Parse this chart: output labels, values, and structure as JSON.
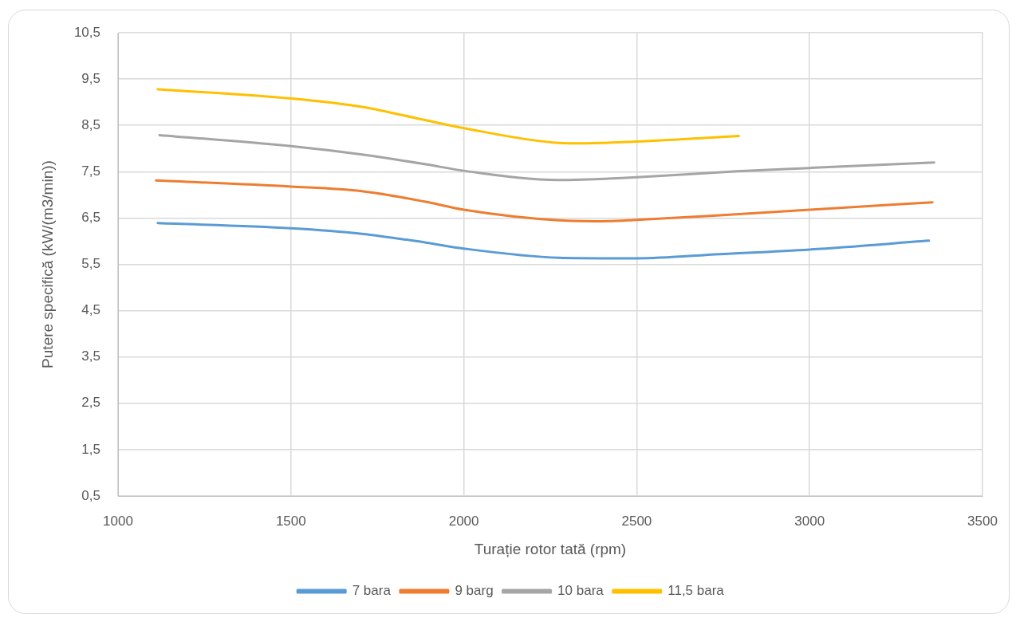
{
  "chart_data": {
    "type": "line",
    "xlabel": "Turație rotor tată (rpm)",
    "ylabel": "Putere specifică (kW/(m3/min))",
    "xlim": [
      1000,
      3500
    ],
    "xticks": [
      1000,
      1500,
      2000,
      2500,
      3000,
      3500
    ],
    "ylim": [
      0.5,
      10.5
    ],
    "yticks": [
      {
        "value": 0.5,
        "label": "0,5"
      },
      {
        "value": 1.5,
        "label": "1,5"
      },
      {
        "value": 2.5,
        "label": "2,5"
      },
      {
        "value": 3.5,
        "label": "3,5"
      },
      {
        "value": 4.5,
        "label": "4,5"
      },
      {
        "value": 5.5,
        "label": "5,5"
      },
      {
        "value": 6.5,
        "label": "6,5"
      },
      {
        "value": 7.5,
        "label": "7,5"
      },
      {
        "value": 8.5,
        "label": "8,5"
      },
      {
        "value": 9.5,
        "label": "9,5"
      },
      {
        "value": 10.5,
        "label": "10,5"
      }
    ],
    "grid": true,
    "legend": "bottom",
    "marker": "none",
    "line_style": "solid",
    "series": [
      {
        "name": "7 bara",
        "color": "#5b9bd5",
        "x": [
          1115,
          1500,
          1705,
          1890,
          2000,
          2275,
          2400,
          2500,
          2740,
          3000,
          3345
        ],
        "values": [
          6.39,
          6.28,
          6.16,
          5.97,
          5.84,
          5.64,
          5.63,
          5.63,
          5.72,
          5.82,
          6.01
        ]
      },
      {
        "name": "9 barg",
        "color": "#ed7d31",
        "x": [
          1110,
          1500,
          1705,
          1890,
          2000,
          2275,
          2400,
          2500,
          2740,
          3000,
          3355
        ],
        "values": [
          7.31,
          7.18,
          7.08,
          6.85,
          6.68,
          6.45,
          6.43,
          6.46,
          6.56,
          6.68,
          6.84
        ]
      },
      {
        "name": "10 bara",
        "color": "#a5a5a5",
        "x": [
          1120,
          1500,
          1705,
          1890,
          2000,
          2275,
          2340,
          2500,
          2790,
          3000,
          3360
        ],
        "values": [
          8.29,
          8.05,
          7.87,
          7.66,
          7.52,
          7.32,
          7.33,
          7.38,
          7.51,
          7.58,
          7.7
        ]
      },
      {
        "name": "11,5 bara",
        "color": "#ffc000",
        "x": [
          1115,
          1500,
          1705,
          1890,
          2000,
          2275,
          2340,
          2500,
          2795
        ],
        "values": [
          9.28,
          9.08,
          8.9,
          8.61,
          8.44,
          8.12,
          8.11,
          8.15,
          8.27
        ]
      }
    ]
  }
}
